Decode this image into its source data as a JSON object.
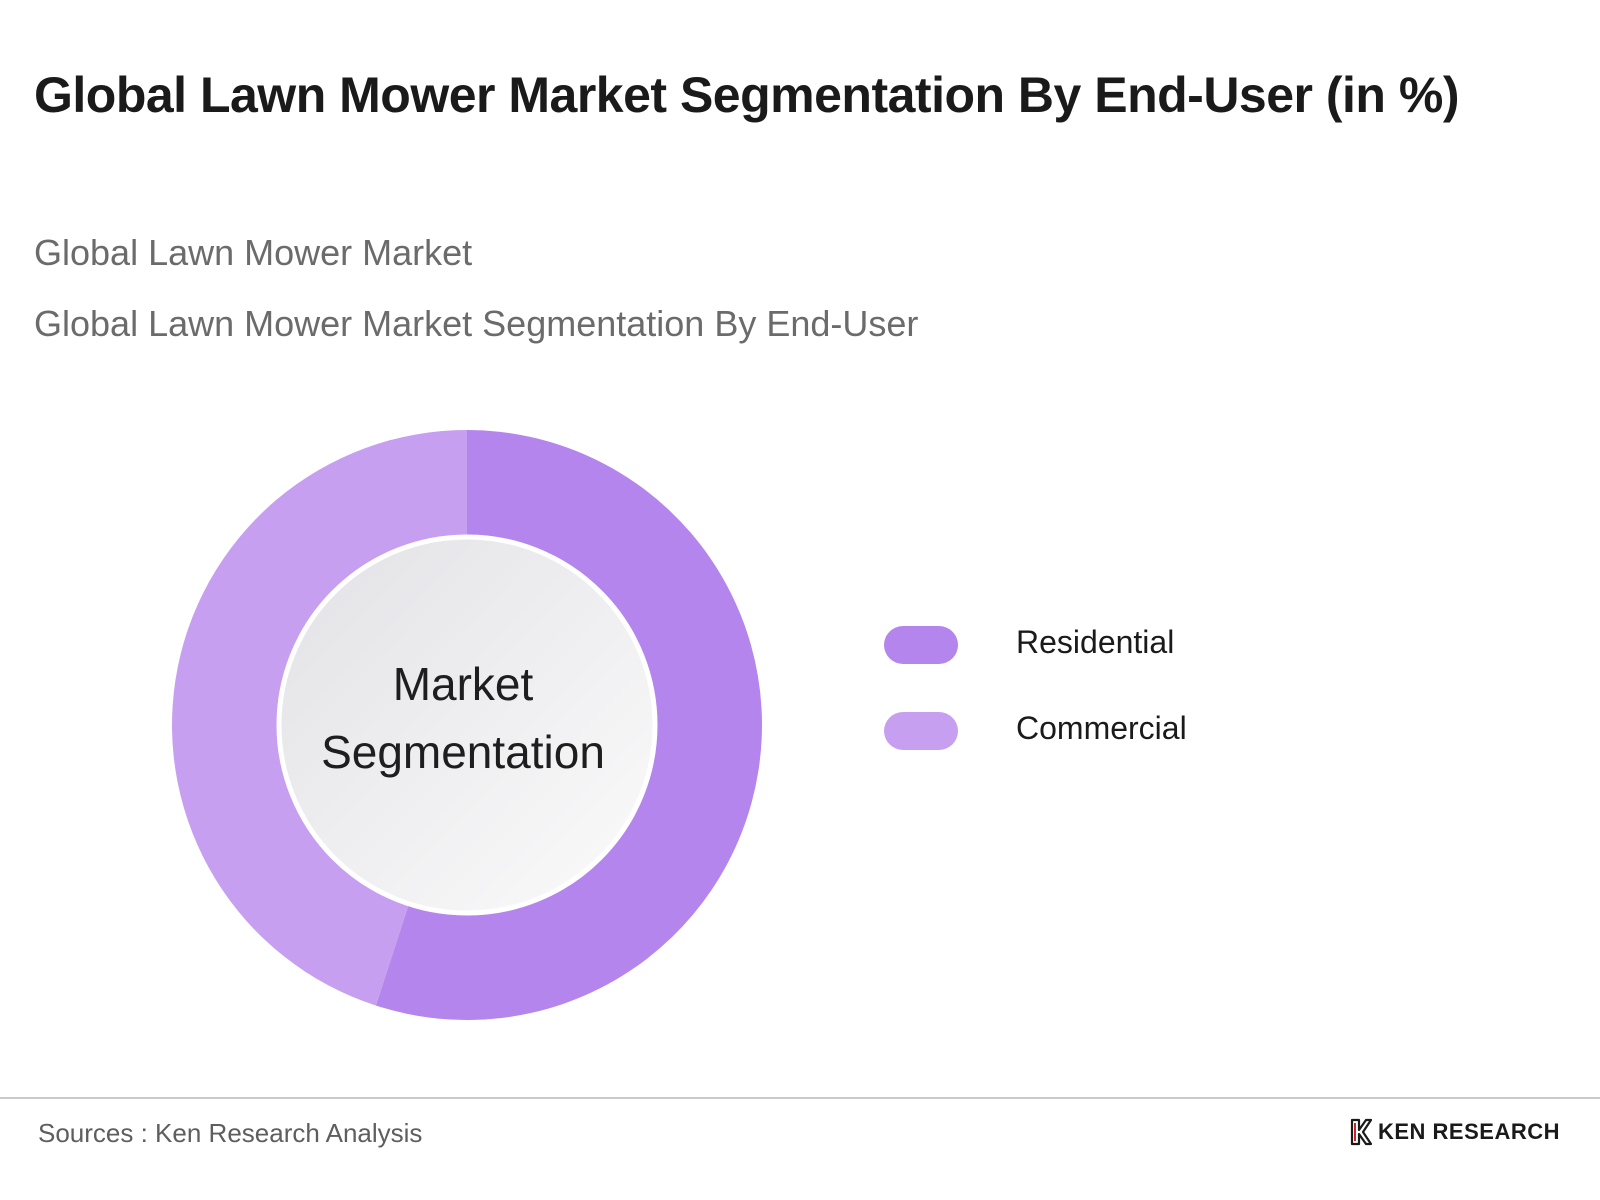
{
  "header": {
    "title": "Global Lawn Mower Market Segmentation By End-User (in %)",
    "subtitle_1": "Global Lawn Mower Market",
    "subtitle_2": "Global Lawn Mower Market Segmentation By End-User"
  },
  "chart_data": {
    "type": "pie",
    "center_label_line1": "Market",
    "center_label_line2": "Segmentation",
    "legend_placement": "right",
    "slices": [
      {
        "name": "Residential",
        "value": 55,
        "color": "#b485ec"
      },
      {
        "name": "Commercial",
        "value": 45,
        "color": "#c79ff0"
      }
    ]
  },
  "footer": {
    "source": "Sources : Ken Research Analysis",
    "brand_name": "KEN RESEARCH",
    "brand_icon": "ken-research-logo-icon"
  }
}
